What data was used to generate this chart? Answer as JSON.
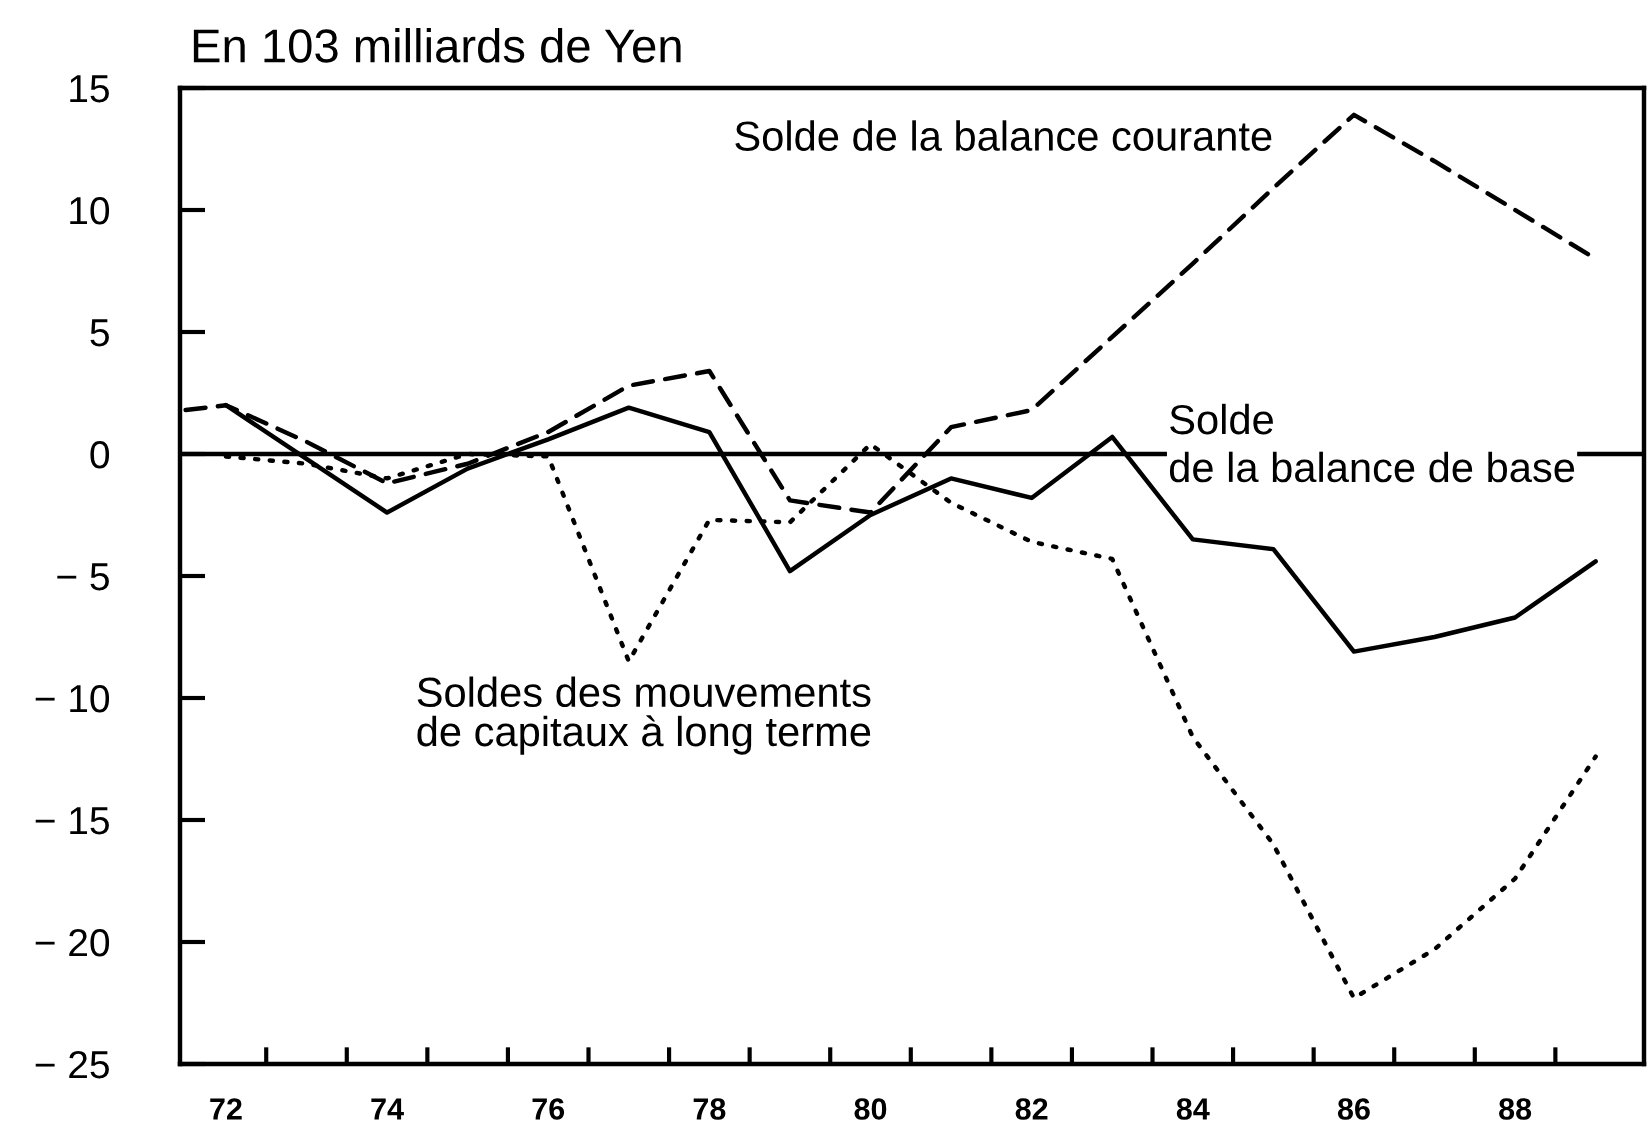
{
  "chart_data": {
    "type": "line",
    "title": "En 103 milliards de Yen",
    "x": [
      72,
      73,
      74,
      75,
      76,
      77,
      78,
      79,
      80,
      81,
      82,
      83,
      84,
      85,
      86,
      87,
      88,
      89
    ],
    "xlim": [
      71.43,
      89.6
    ],
    "xticks": [
      {
        "value": 72,
        "label": "72"
      },
      {
        "value": 72.5,
        "label": null
      },
      {
        "value": 73.5,
        "label": null
      },
      {
        "value": 74,
        "label": "74"
      },
      {
        "value": 74.5,
        "label": null
      },
      {
        "value": 75.5,
        "label": null
      },
      {
        "value": 76,
        "label": "76"
      },
      {
        "value": 76.5,
        "label": null
      },
      {
        "value": 77.5,
        "label": null
      },
      {
        "value": 78,
        "label": "78"
      },
      {
        "value": 78.5,
        "label": null
      },
      {
        "value": 79.5,
        "label": null
      },
      {
        "value": 80,
        "label": "80"
      },
      {
        "value": 80.5,
        "label": null
      },
      {
        "value": 81.5,
        "label": null
      },
      {
        "value": 82,
        "label": "82"
      },
      {
        "value": 82.5,
        "label": null
      },
      {
        "value": 83.5,
        "label": null
      },
      {
        "value": 84,
        "label": "84"
      },
      {
        "value": 84.5,
        "label": null
      },
      {
        "value": 85.5,
        "label": null
      },
      {
        "value": 86,
        "label": "86"
      },
      {
        "value": 86.5,
        "label": null
      },
      {
        "value": 87.5,
        "label": null
      },
      {
        "value": 88,
        "label": "88"
      },
      {
        "value": 88.5,
        "label": null
      }
    ],
    "ylim": [
      -25,
      15
    ],
    "yticks": [
      {
        "value": -25,
        "label": "− 25"
      },
      {
        "value": -20,
        "label": "− 20"
      },
      {
        "value": -15,
        "label": "− 15"
      },
      {
        "value": -10,
        "label": "− 10"
      },
      {
        "value": -5,
        "label": "− 5"
      },
      0,
      5,
      10,
      15
    ],
    "series": [
      {
        "name": "Solde de la balance courante",
        "color": "#000000",
        "line_style": "dashed",
        "x": [
          71.5,
          72,
          73,
          74,
          75,
          76,
          77,
          78,
          79,
          80,
          81,
          82,
          83,
          84,
          85,
          86,
          87,
          88,
          89
        ],
        "values": [
          1.8,
          2.0,
          0.5,
          -1.2,
          -0.4,
          0.9,
          2.8,
          3.4,
          -1.9,
          -2.4,
          1.1,
          1.8,
          4.8,
          7.8,
          10.9,
          13.9,
          12.0,
          10.0,
          8.0
        ]
      },
      {
        "name": "Solde\nde la balance de base",
        "color": "#000000",
        "line_style": "solid",
        "values": [
          2.0,
          -0.2,
          -2.4,
          -0.6,
          0.6,
          1.9,
          0.9,
          -4.8,
          -2.5,
          -1.0,
          -1.8,
          0.7,
          -3.5,
          -3.9,
          -8.1,
          -7.5,
          -6.7,
          -4.4
        ]
      },
      {
        "name": "Soldes des mouvements\nde capitaux à long terme",
        "color": "#000000",
        "line_style": "dotted",
        "values": [
          -0.1,
          -0.4,
          -1.0,
          0.0,
          -0.1,
          -8.5,
          -2.7,
          -2.8,
          0.4,
          -2.0,
          -3.6,
          -4.3,
          -11.6,
          -16.0,
          -22.3,
          -20.3,
          -17.4,
          -12.4
        ]
      }
    ],
    "ref_lines": [
      {
        "axis": "y",
        "value": 0,
        "color": "#000000",
        "line_style": "solid"
      }
    ]
  }
}
